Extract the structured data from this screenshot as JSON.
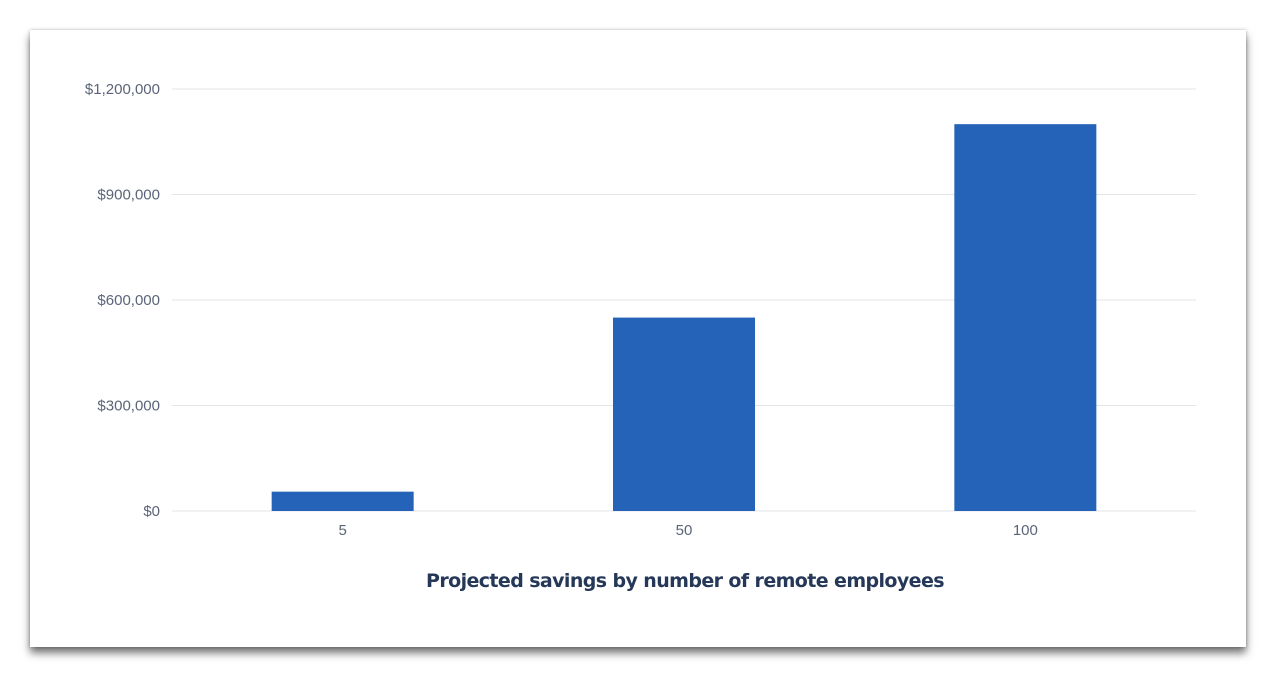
{
  "chart_data": {
    "type": "bar",
    "title": "Projected savings by number of remote employees",
    "categories": [
      "5",
      "50",
      "100"
    ],
    "values": [
      55000,
      550000,
      1100000
    ],
    "yticks": [
      0,
      300000,
      600000,
      900000,
      1200000
    ],
    "ytick_labels": [
      "$0",
      "$300,000",
      "$600,000",
      "$900,000",
      "$1,200,000"
    ],
    "ylim": [
      0,
      1200000
    ],
    "xlabel": "",
    "ylabel": "",
    "grid": true,
    "legend": "none",
    "colors": {
      "bar": "#2563b8",
      "grid": "#e4e6ea",
      "tick_text": "#5b6478",
      "title_text": "#253858"
    }
  }
}
